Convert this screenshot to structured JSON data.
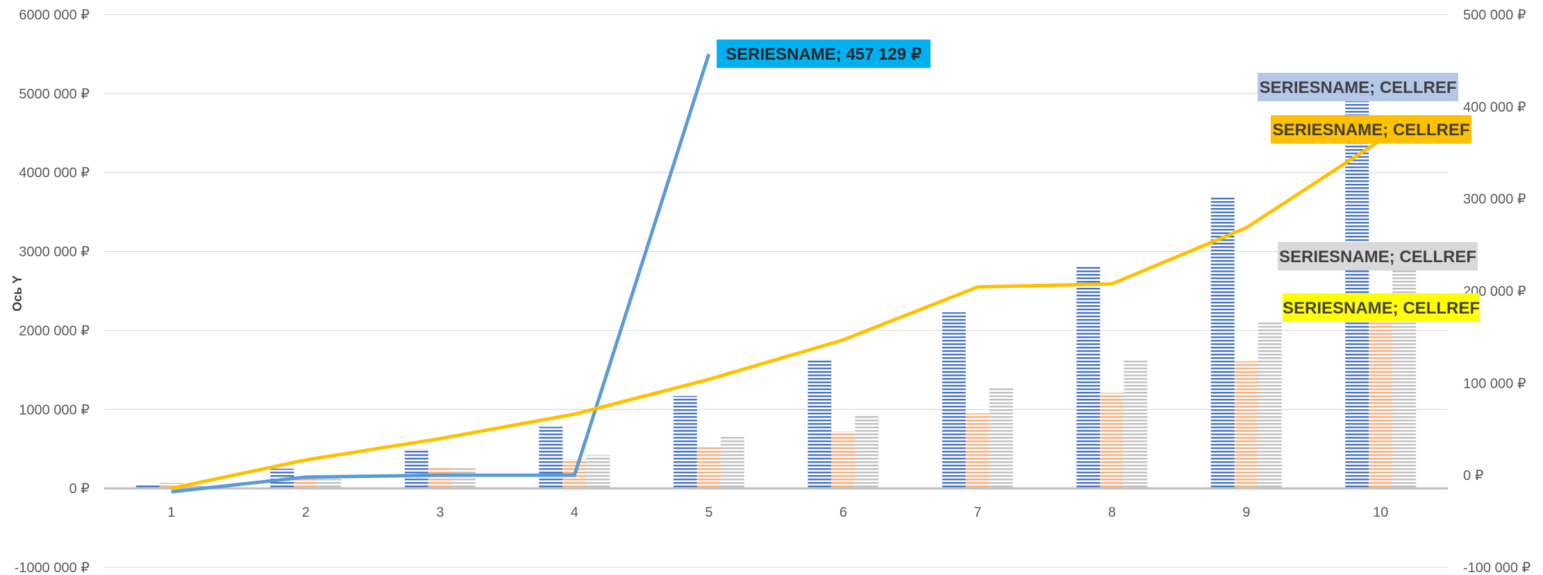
{
  "chart_data": {
    "type": "bar",
    "categories": [
      "1",
      "2",
      "3",
      "4",
      "5",
      "6",
      "7",
      "8",
      "9",
      "10"
    ],
    "ylabel": "Ось Y",
    "ylim": [
      -1000000,
      6000000
    ],
    "y2lim": [
      -100000,
      500000
    ],
    "y_ticks": [
      "6000 000 ₽",
      "5000 000 ₽",
      "4000 000 ₽",
      "3000 000 ₽",
      "2000 000 ₽",
      "1000 000 ₽",
      "0 ₽",
      "-1000 000 ₽"
    ],
    "y2_ticks": [
      "500 000 ₽",
      "400 000 ₽",
      "300 000 ₽",
      "200 000 ₽",
      "100 000 ₽",
      "0 ₽",
      "-100 000 ₽"
    ],
    "grid": true,
    "legend": "none",
    "colors": {
      "bar1": "#4472C4",
      "bar2": "#ED7D31",
      "bar3": "#A5A5A5",
      "line_blue": "#5B9BD5",
      "line_gold": "#FFC000"
    },
    "bar_series": [
      {
        "values": [
          50000,
          250000,
          500000,
          780000,
          1170000,
          1640000,
          2230000,
          2820000,
          3700000,
          4900000
        ]
      },
      {
        "values": [
          70000,
          130000,
          270000,
          370000,
          520000,
          720000,
          950000,
          1210000,
          1610000,
          2150000
        ]
      },
      {
        "values": [
          30000,
          120000,
          260000,
          420000,
          660000,
          940000,
          1280000,
          1630000,
          2120000,
          2800000
        ]
      }
    ],
    "line_series": [
      {
        "axis": "secondary",
        "color": "#5B9BD5",
        "points": [
          [
            1,
            -18000
          ],
          [
            2,
            -2000
          ],
          [
            3,
            0
          ],
          [
            4,
            0
          ],
          [
            5,
            457129
          ]
        ]
      },
      {
        "axis": "primary",
        "color": "#FFC000",
        "values": [
          0,
          360000,
          630000,
          940000,
          1380000,
          1880000,
          2550000,
          2590000,
          3300000,
          4410000
        ]
      }
    ],
    "data_labels": [
      {
        "text": "SERIESNAME; 457 129 ₽",
        "bg": "#00B0F0",
        "fg": "#262626"
      },
      {
        "text": "SERIESNAME; CELLREF",
        "bg": "#B4C7E7",
        "fg": "#404040"
      },
      {
        "text": "SERIESNAME; CELLREF",
        "bg": "#FFC000",
        "fg": "#404040"
      },
      {
        "text": "SERIESNAME; CELLREF",
        "bg": "#D9D9D9",
        "fg": "#404040"
      },
      {
        "text": "SERIESNAME; CELLREF",
        "bg": "#FFFF00",
        "fg": "#404040"
      }
    ]
  }
}
